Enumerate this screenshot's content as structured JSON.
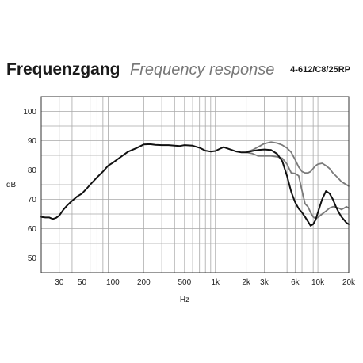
{
  "header": {
    "title_de": "Frequenzgang",
    "title_en": "Frequency response",
    "model": "4-612/C8/25RP"
  },
  "chart_data": {
    "type": "line",
    "title": "Frequenzgang Frequency response",
    "xlabel": "Hz",
    "ylabel": "dB",
    "xscale": "log",
    "xlim": [
      20,
      20000
    ],
    "ylim": [
      45,
      105
    ],
    "grid": true,
    "x_tick_labels": [
      {
        "value": 30,
        "label": "30"
      },
      {
        "value": 50,
        "label": "50"
      },
      {
        "value": 100,
        "label": "100"
      },
      {
        "value": 200,
        "label": "200"
      },
      {
        "value": 500,
        "label": "500"
      },
      {
        "value": 1000,
        "label": "1k"
      },
      {
        "value": 2000,
        "label": "2k"
      },
      {
        "value": 3000,
        "label": "3k"
      },
      {
        "value": 6000,
        "label": "6k"
      },
      {
        "value": 10000,
        "label": "10k"
      },
      {
        "value": 20000,
        "label": "20k"
      }
    ],
    "y_tick_labels": [
      {
        "value": 50,
        "label": "50"
      },
      {
        "value": 60,
        "label": "60"
      },
      {
        "value": 70,
        "label": "70"
      },
      {
        "value": 80,
        "label": "80"
      },
      {
        "value": 90,
        "label": "90"
      },
      {
        "value": 100,
        "label": "100"
      }
    ],
    "series": [
      {
        "color": "#111111",
        "x": [
          20,
          22,
          24,
          26,
          28,
          30,
          33,
          36,
          40,
          45,
          50,
          55,
          60,
          70,
          80,
          90,
          100,
          120,
          140,
          170,
          200,
          230,
          260,
          300,
          350,
          400,
          450,
          500,
          600,
          700,
          800,
          900,
          1000,
          1100,
          1200,
          1400,
          1600,
          1800,
          2000,
          2300,
          2600,
          3000,
          3500,
          4000,
          4500,
          5000,
          5500,
          6000,
          6500,
          7000,
          7500,
          8000,
          8500,
          9000,
          9500,
          10000,
          11000,
          12000,
          13000,
          14000,
          15000,
          16000,
          17000,
          18000,
          19000,
          20000
        ],
        "y": [
          64.0,
          63.8,
          63.8,
          63.3,
          63.7,
          64.5,
          66.5,
          68.0,
          69.5,
          71.0,
          72.0,
          73.5,
          75.0,
          77.5,
          79.5,
          81.5,
          82.5,
          84.5,
          86.2,
          87.5,
          88.7,
          88.8,
          88.6,
          88.5,
          88.5,
          88.3,
          88.2,
          88.5,
          88.3,
          87.6,
          86.6,
          86.3,
          86.5,
          87.2,
          87.8,
          87.0,
          86.3,
          86.0,
          86.0,
          86.5,
          86.8,
          87.0,
          86.8,
          85.5,
          83.0,
          78.0,
          72.5,
          69.0,
          66.8,
          65.5,
          64.0,
          62.5,
          61.0,
          61.5,
          63.0,
          65.5,
          70.0,
          72.8,
          72.0,
          70.0,
          67.5,
          65.5,
          64.0,
          63.0,
          62.0,
          61.5
        ]
      },
      {
        "color": "#7a7a7a",
        "x": [
          2000,
          2300,
          2600,
          3000,
          3500,
          4000,
          4500,
          5000,
          5500,
          6000,
          6500,
          7000,
          7500,
          8000,
          8500,
          9000,
          9500,
          10000,
          11000,
          12000,
          13000,
          14000,
          15000,
          16000,
          17000,
          18000,
          19000,
          20000
        ],
        "y": [
          86.2,
          86.8,
          87.8,
          89.0,
          89.5,
          89.2,
          88.5,
          87.5,
          86.0,
          83.5,
          81.0,
          79.5,
          79.0,
          79.0,
          79.5,
          80.5,
          81.5,
          82.0,
          82.3,
          81.5,
          80.5,
          79.0,
          78.0,
          77.0,
          76.0,
          75.5,
          75.0,
          74.5
        ]
      },
      {
        "color": "#7a7a7a",
        "x": [
          2000,
          2300,
          2600,
          3000,
          3500,
          4000,
          4500,
          5000,
          5500,
          6000,
          6500,
          7000,
          7500,
          8000,
          8500,
          9000,
          9500,
          10000,
          11000,
          12000,
          13000,
          14000,
          15000,
          16000,
          17000,
          18000,
          19000,
          20000
        ],
        "y": [
          86.0,
          85.6,
          84.8,
          84.8,
          84.8,
          84.5,
          84.0,
          82.0,
          79.0,
          78.8,
          78.0,
          73.0,
          68.5,
          67.5,
          65.5,
          64.0,
          63.5,
          63.8,
          65.0,
          66.0,
          67.0,
          67.5,
          67.3,
          67.0,
          66.5,
          67.0,
          67.5,
          67.0
        ]
      }
    ]
  }
}
